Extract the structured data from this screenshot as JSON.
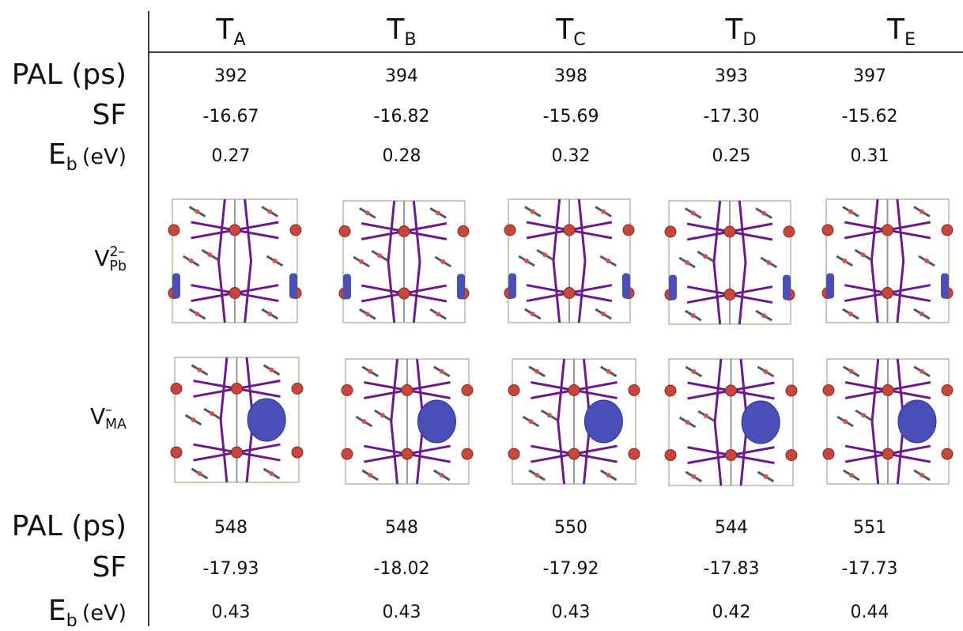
{
  "header": [
    {
      "base": "T",
      "sub": "A"
    },
    {
      "base": "T",
      "sub": "B"
    },
    {
      "base": "T",
      "sub": "C"
    },
    {
      "base": "T",
      "sub": "D"
    },
    {
      "base": "T",
      "sub": "E"
    }
  ],
  "rows": [
    {
      "label": {
        "text": "PAL (ps)"
      },
      "cells": [
        "392",
        "394",
        "398",
        "393",
        "397"
      ]
    },
    {
      "label": {
        "text": "SF"
      },
      "cells": [
        "-16.67",
        "-16.82",
        "-15.69",
        "-17.30",
        "-15.62"
      ]
    },
    {
      "label": {
        "base": "E",
        "sub": "b",
        "unit": "(eV)"
      },
      "cells": [
        "0.27",
        "0.28",
        "0.32",
        "0.25",
        "0.31"
      ]
    },
    {
      "label": {
        "base": "V",
        "sup": "2–",
        "sub": "Pb"
      }
    },
    {
      "label": {
        "base": "V",
        "sup": "–",
        "sub": "MA"
      }
    },
    {
      "label": {
        "text": "PAL (ps)"
      },
      "cells": [
        "548",
        "548",
        "550",
        "544",
        "551"
      ]
    },
    {
      "label": {
        "text": "SF"
      },
      "cells": [
        "-17.93",
        "-18.02",
        "-17.92",
        "-17.83",
        "-17.73"
      ]
    },
    {
      "label": {
        "base": "E",
        "sub": "b",
        "unit": "(eV)"
      },
      "cells": [
        "0.43",
        "0.43",
        "0.43",
        "0.42",
        "0.44"
      ]
    }
  ]
}
